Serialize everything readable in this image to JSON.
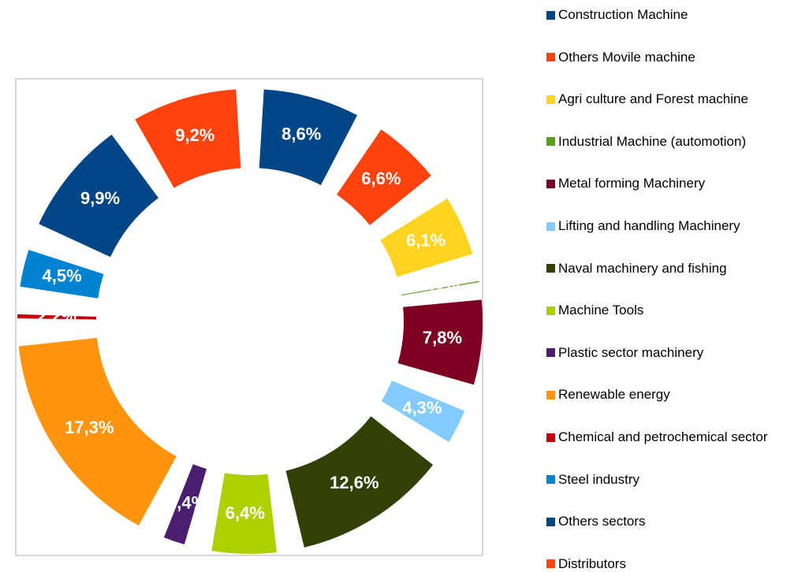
{
  "chart_data": {
    "type": "donut",
    "categories": [
      "Construction Machine",
      "Others Movile machine",
      "Agri culture and Forest machine",
      "Industrial Machine (automotion)",
      "Metal forming Machinery",
      "Lifting and handling Machinery",
      "Naval machinery and fishing",
      "Machine Tools",
      "Plastic sector machinery",
      "Renewable energy",
      "Chemical and petrochemical sector",
      "Steel industry",
      "Others sectors",
      "Distributors"
    ],
    "values": [
      8.6,
      6.6,
      6.1,
      1.3,
      7.8,
      4.3,
      12.6,
      6.4,
      3.4,
      17.3,
      2.2,
      4.5,
      9.9,
      9.2
    ],
    "value_labels": [
      "8,6%",
      "6,6%",
      "6,1%",
      "1,3%",
      "7,8%",
      "4,3%",
      "12,6%",
      "6,4%",
      "3,4%",
      "17,3%",
      "2,2%",
      "4,5%",
      "9,9%",
      "9,2%"
    ],
    "colors": [
      "#004586",
      "#ff420e",
      "#ffd320",
      "#579d1c",
      "#7e0021",
      "#83caff",
      "#314004",
      "#aecf00",
      "#4b1f6f",
      "#ff950e",
      "#c5000b",
      "#0084d1",
      "#004586",
      "#ff420e"
    ],
    "legend": "right"
  }
}
